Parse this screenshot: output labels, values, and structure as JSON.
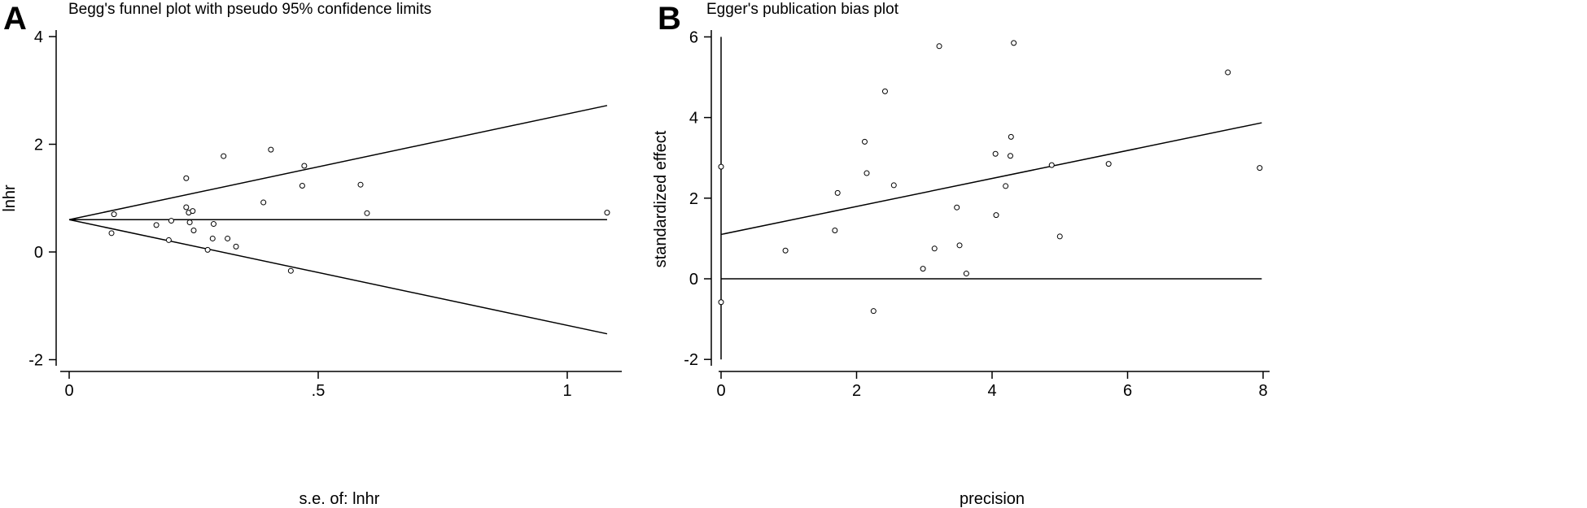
{
  "panels": [
    {
      "letter": "A",
      "title": "Begg's funnel plot with pseudo 95% confidence limits"
    },
    {
      "letter": "B",
      "title": "Egger's publication bias plot"
    }
  ],
  "chart_data": [
    {
      "type": "scatter",
      "title": "Begg's funnel plot with pseudo 95% confidence limits",
      "xlabel": "s.e. of: lnhr",
      "ylabel": "lnhr",
      "xlim": [
        -0.02,
        1.1
      ],
      "ylim": [
        -2.2,
        4.2
      ],
      "xticks": [
        0,
        0.5,
        1
      ],
      "xtick_labels": [
        "0",
        ".5",
        "1"
      ],
      "yticks": [
        -2,
        0,
        2,
        4
      ],
      "ytick_labels": [
        "-2",
        "0",
        "2",
        "4"
      ],
      "grid": false,
      "points": [
        {
          "x": 0.085,
          "y": 0.35
        },
        {
          "x": 0.09,
          "y": 0.7
        },
        {
          "x": 0.175,
          "y": 0.5
        },
        {
          "x": 0.2,
          "y": 0.22
        },
        {
          "x": 0.205,
          "y": 0.58
        },
        {
          "x": 0.235,
          "y": 1.37
        },
        {
          "x": 0.235,
          "y": 0.83
        },
        {
          "x": 0.24,
          "y": 0.73
        },
        {
          "x": 0.242,
          "y": 0.55
        },
        {
          "x": 0.248,
          "y": 0.76
        },
        {
          "x": 0.25,
          "y": 0.4
        },
        {
          "x": 0.278,
          "y": 0.04
        },
        {
          "x": 0.288,
          "y": 0.25
        },
        {
          "x": 0.29,
          "y": 0.52
        },
        {
          "x": 0.31,
          "y": 1.78
        },
        {
          "x": 0.318,
          "y": 0.25
        },
        {
          "x": 0.335,
          "y": 0.1
        },
        {
          "x": 0.39,
          "y": 0.92
        },
        {
          "x": 0.405,
          "y": 1.9
        },
        {
          "x": 0.445,
          "y": -0.35
        },
        {
          "x": 0.468,
          "y": 1.23
        },
        {
          "x": 0.472,
          "y": 1.6
        },
        {
          "x": 0.585,
          "y": 1.25
        },
        {
          "x": 0.598,
          "y": 0.72
        },
        {
          "x": 1.08,
          "y": 0.73
        }
      ],
      "lines": [
        {
          "name": "pooled",
          "x": [
            0,
            1.08
          ],
          "y": [
            0.6,
            0.6
          ]
        },
        {
          "name": "upper",
          "x": [
            0,
            1.08
          ],
          "y": [
            0.6,
            2.72
          ]
        },
        {
          "name": "lower",
          "x": [
            0,
            1.08
          ],
          "y": [
            0.6,
            -1.52
          ]
        }
      ]
    },
    {
      "type": "scatter",
      "title": "Egger's publication bias plot",
      "xlabel": "precision",
      "ylabel": "standardized effect",
      "xlim": [
        -0.2,
        8.0
      ],
      "ylim": [
        -2.3,
        6.3
      ],
      "xticks": [
        0,
        2,
        4,
        6,
        8
      ],
      "xtick_labels": [
        "0",
        "2",
        "4",
        "6",
        "8"
      ],
      "yticks": [
        -2,
        0,
        2,
        4,
        6
      ],
      "ytick_labels": [
        "-2",
        "0",
        "2",
        "4",
        "6"
      ],
      "grid": false,
      "points": [
        {
          "x": 0.0,
          "y": 2.78
        },
        {
          "x": 0.0,
          "y": -0.58
        },
        {
          "x": 0.95,
          "y": 0.7
        },
        {
          "x": 1.68,
          "y": 1.2
        },
        {
          "x": 1.72,
          "y": 2.13
        },
        {
          "x": 2.12,
          "y": 3.4
        },
        {
          "x": 2.15,
          "y": 2.62
        },
        {
          "x": 2.25,
          "y": -0.8
        },
        {
          "x": 2.42,
          "y": 4.65
        },
        {
          "x": 2.55,
          "y": 2.32
        },
        {
          "x": 2.98,
          "y": 0.25
        },
        {
          "x": 3.15,
          "y": 0.75
        },
        {
          "x": 3.22,
          "y": 5.77
        },
        {
          "x": 3.48,
          "y": 1.77
        },
        {
          "x": 3.52,
          "y": 0.83
        },
        {
          "x": 3.62,
          "y": 0.13
        },
        {
          "x": 4.05,
          "y": 3.1
        },
        {
          "x": 4.06,
          "y": 1.58
        },
        {
          "x": 4.2,
          "y": 2.3
        },
        {
          "x": 4.27,
          "y": 3.05
        },
        {
          "x": 4.28,
          "y": 3.52
        },
        {
          "x": 4.32,
          "y": 5.85
        },
        {
          "x": 4.88,
          "y": 2.82
        },
        {
          "x": 5.0,
          "y": 1.05
        },
        {
          "x": 5.72,
          "y": 2.85
        },
        {
          "x": 7.48,
          "y": 5.12
        },
        {
          "x": 7.95,
          "y": 2.75
        }
      ],
      "lines": [
        {
          "name": "regression",
          "x": [
            0,
            7.98
          ],
          "y": [
            1.1,
            3.87
          ]
        },
        {
          "name": "zero",
          "x": [
            0,
            7.98
          ],
          "y": [
            0,
            0
          ]
        },
        {
          "name": "vertical",
          "x": [
            0,
            0
          ],
          "y": [
            -2,
            6
          ]
        }
      ]
    }
  ]
}
